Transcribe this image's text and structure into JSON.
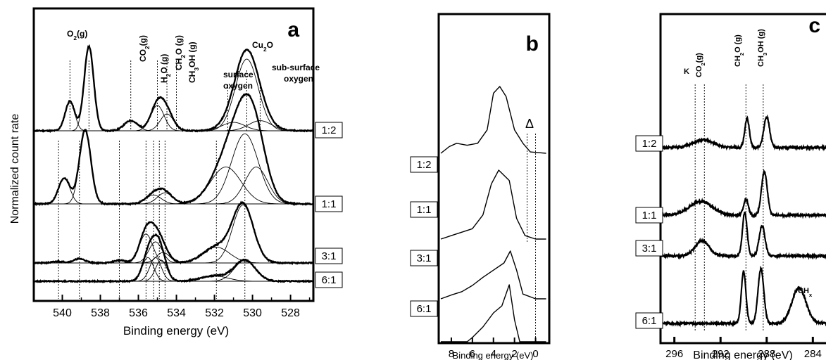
{
  "chart_data": [
    {
      "id": "a",
      "type": "line",
      "panel_letter": "a",
      "ylabel": "Normalized count rate",
      "xlabel": "Binding energy (eV)",
      "x_reversed": true,
      "xlim": [
        541.5,
        526.8
      ],
      "xtick_labels": [
        "540",
        "538",
        "536",
        "534",
        "532",
        "530",
        "528"
      ],
      "xtick_values": [
        540,
        538,
        536,
        534,
        532,
        530,
        528
      ],
      "peak_labels": [
        {
          "text": "O₂(g)",
          "x": 538.9
        },
        {
          "text": "CO₂(g)",
          "x": 536.4
        },
        {
          "text": "H₂O (g)",
          "x": 535.0
        },
        {
          "text": "CH₂O (g)",
          "x": 534.5
        },
        {
          "text": "CH₃OH (g)",
          "x": 534.0
        },
        {
          "text": "surface",
          "x": 531.6
        },
        {
          "text": "oxygen",
          "x": 531.6
        },
        {
          "text": "Cu₂O",
          "x": 530.3
        },
        {
          "text": "sub-surface",
          "x": 529.2
        },
        {
          "text": "oxygen",
          "x": 529.2
        }
      ],
      "series": [
        {
          "name": "1:2",
          "peaks": [
            [
              539.6,
              0.35,
              0.25
            ],
            [
              538.6,
              1.0,
              0.25
            ],
            [
              536.4,
              0.12,
              0.35
            ],
            [
              535.0,
              0.3,
              0.35
            ],
            [
              534.5,
              0.2,
              0.35
            ],
            [
              530.3,
              0.85,
              0.6
            ],
            [
              531.0,
              0.1,
              0.6
            ],
            [
              529.6,
              0.12,
              0.6
            ]
          ]
        },
        {
          "name": "1:1",
          "peaks": [
            [
              539.9,
              0.35,
              0.3
            ],
            [
              538.8,
              1.0,
              0.3
            ],
            [
              535.2,
              0.12,
              0.4
            ],
            [
              534.6,
              0.15,
              0.4
            ],
            [
              531.4,
              0.5,
              0.8
            ],
            [
              530.4,
              0.95,
              0.7
            ],
            [
              529.8,
              0.5,
              0.6
            ]
          ]
        },
        {
          "name": "3:1",
          "peaks": [
            [
              540.2,
              0.03,
              0.3
            ],
            [
              539.1,
              0.08,
              0.3
            ],
            [
              537.0,
              0.05,
              0.3
            ],
            [
              535.6,
              0.55,
              0.35
            ],
            [
              535.1,
              0.4,
              0.35
            ],
            [
              534.7,
              0.2,
              0.35
            ],
            [
              531.9,
              0.3,
              0.7
            ],
            [
              530.5,
              1.1,
              0.55
            ]
          ]
        },
        {
          "name": "6:1",
          "peaks": [
            [
              535.5,
              0.45,
              0.3
            ],
            [
              535.1,
              0.45,
              0.3
            ],
            [
              534.8,
              0.4,
              0.3
            ],
            [
              532.0,
              0.1,
              0.7
            ],
            [
              530.4,
              0.4,
              0.55
            ]
          ]
        }
      ]
    },
    {
      "id": "b",
      "type": "line",
      "panel_letter": "b",
      "xlabel": "Binding energy (eV)",
      "x_reversed": true,
      "xlim": [
        9.2,
        -1.3
      ],
      "xtick_labels": [
        "8",
        "6",
        "4",
        "2",
        "0"
      ],
      "xtick_values": [
        8,
        6,
        4,
        2,
        0
      ],
      "marker": "Δ",
      "series": [
        {
          "name": "1:2"
        },
        {
          "name": "1:1"
        },
        {
          "name": "3:1"
        },
        {
          "name": "6:1"
        }
      ]
    },
    {
      "id": "c",
      "type": "line",
      "panel_letter": "c",
      "xlabel": "Binding energy (eV)",
      "x_reversed": true,
      "xlim": [
        297.2,
        282.0
      ],
      "xtick_labels": [
        "296",
        "292",
        "288",
        "284"
      ],
      "xtick_values": [
        296,
        292,
        288,
        284
      ],
      "peak_labels": [
        {
          "text": "K",
          "x": 294.2
        },
        {
          "text": "CO₂(g)",
          "x": 293.4
        },
        {
          "text": "CH₂O (g)",
          "x": 289.6
        },
        {
          "text": "CH₃OH (g)",
          "x": 288.1
        },
        {
          "text": "CHₓ",
          "x": 285.0
        }
      ],
      "series": [
        {
          "name": "1:2",
          "peaks": [
            [
              293.5,
              0.2,
              0.9
            ],
            [
              289.7,
              0.75,
              0.2
            ],
            [
              288.0,
              0.8,
              0.25
            ]
          ]
        },
        {
          "name": "1:1",
          "peaks": [
            [
              293.7,
              0.3,
              1.0
            ],
            [
              289.8,
              0.35,
              0.2
            ],
            [
              288.2,
              0.95,
              0.25
            ]
          ]
        },
        {
          "name": "3:1",
          "peaks": [
            [
              293.6,
              0.35,
              0.6
            ],
            [
              289.9,
              1.0,
              0.2
            ],
            [
              288.4,
              0.7,
              0.25
            ]
          ]
        },
        {
          "name": "6:1",
          "peaks": [
            [
              290.0,
              0.95,
              0.2
            ],
            [
              288.5,
              1.0,
              0.25
            ],
            [
              285.2,
              0.65,
              0.6
            ]
          ]
        }
      ]
    }
  ]
}
